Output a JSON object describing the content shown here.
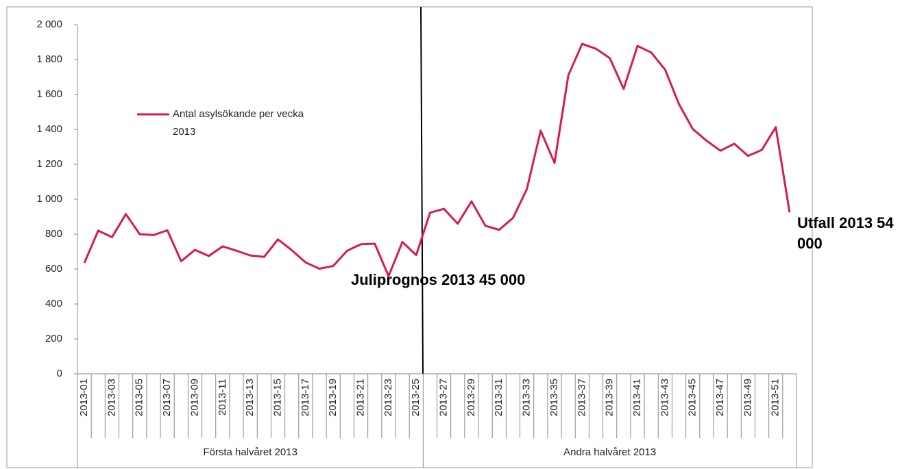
{
  "chart_data": {
    "type": "line",
    "categories": [
      "2013-01",
      null,
      "2013-03",
      null,
      "2013-05",
      null,
      "2013-07",
      null,
      "2013-09",
      null,
      "2013-11",
      null,
      "2013-13",
      null,
      "2013-15",
      null,
      "2013-17",
      null,
      "2013-19",
      null,
      "2013-21",
      null,
      "2013-23",
      null,
      "2013-25",
      null,
      "2013-27",
      null,
      "2013-29",
      null,
      "2013-31",
      null,
      "2013-33",
      null,
      "2013-35",
      null,
      "2013-37",
      null,
      "2013-39",
      null,
      "2013-41",
      null,
      "2013-43",
      null,
      "2013-45",
      null,
      "2013-47",
      null,
      "2013-49",
      null,
      "2013-51",
      null
    ],
    "category_groups": [
      {
        "label": "Första halvåret 2013",
        "count": 25
      },
      {
        "label": "Andra halvåret 2013",
        "count": 27
      }
    ],
    "series": [
      {
        "name": "Antal asylsökande per vecka 2013",
        "color": "#d81b4e",
        "values": [
          635,
          820,
          783,
          915,
          800,
          795,
          822,
          645,
          710,
          675,
          730,
          705,
          678,
          670,
          770,
          708,
          638,
          602,
          618,
          705,
          742,
          745,
          560,
          755,
          680,
          923,
          945,
          860,
          988,
          848,
          825,
          893,
          1058,
          1393,
          1208,
          1710,
          1890,
          1862,
          1808,
          1632,
          1878,
          1840,
          1742,
          1545,
          1402,
          1335,
          1278,
          1318,
          1248,
          1283,
          1413,
          925
        ]
      }
    ],
    "ylim": [
      0,
      2000
    ],
    "yticks": [
      0,
      200,
      400,
      600,
      800,
      {
        "value": 1000,
        "label": "1 000"
      },
      {
        "value": 1200,
        "label": "1 200"
      },
      {
        "value": 1400,
        "label": "1 400"
      },
      {
        "value": 1600,
        "label": "1 600"
      },
      {
        "value": 1800,
        "label": "1 800"
      },
      {
        "value": 2000,
        "label": "2 000"
      }
    ],
    "grid": false,
    "annotations": [
      {
        "text": "Juliprognos 2013 45 000"
      },
      {
        "text": "Utfall 2013 54 000"
      }
    ]
  }
}
